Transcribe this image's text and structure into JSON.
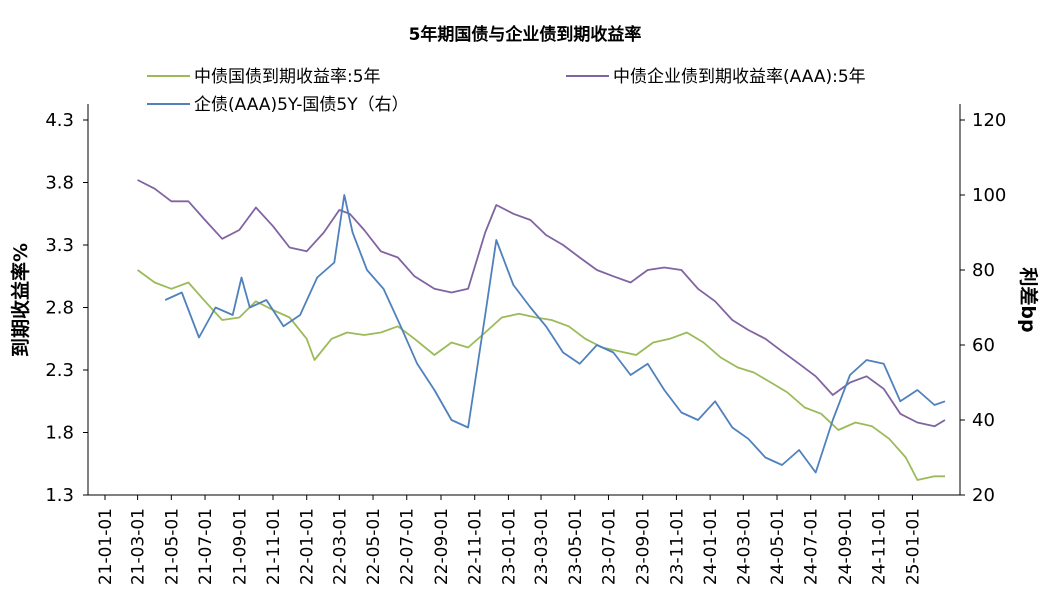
{
  "chart_data": {
    "type": "line",
    "title": "5年期国债与企业债到期收益率",
    "left_axis": {
      "label": "到期收益率%",
      "ylim": [
        1.3,
        4.3
      ],
      "ticks": [
        "4.3",
        "3.8",
        "3.3",
        "2.8",
        "2.3",
        "1.8",
        "1.3"
      ]
    },
    "right_axis": {
      "label": "利差bp",
      "ylim": [
        20,
        120
      ],
      "ticks": [
        "120",
        "100",
        "80",
        "60",
        "40",
        "20"
      ]
    },
    "x_ticks": [
      "21-01-01",
      "21-03-01",
      "21-05-01",
      "21-07-01",
      "21-09-01",
      "21-11-01",
      "22-01-01",
      "22-03-01",
      "22-05-01",
      "22-07-01",
      "22-09-01",
      "22-11-01",
      "23-01-01",
      "23-03-01",
      "23-05-01",
      "23-07-01",
      "23-09-01",
      "23-11-01",
      "24-01-01",
      "24-03-01",
      "24-05-01",
      "24-07-01",
      "24-09-01",
      "24-11-01",
      "25-01-01"
    ],
    "legend_placement": "top",
    "grid": false,
    "series": [
      {
        "name": "中债国债到期收益率:5年",
        "axis": "left",
        "color": "#9BBB59",
        "points": [
          [
            "21-03-01",
            3.1
          ],
          [
            "21-04-01",
            3.0
          ],
          [
            "21-05-01",
            2.95
          ],
          [
            "21-06-01",
            3.0
          ],
          [
            "21-07-01",
            2.85
          ],
          [
            "21-08-01",
            2.7
          ],
          [
            "21-09-01",
            2.72
          ],
          [
            "21-10-01",
            2.85
          ],
          [
            "21-11-01",
            2.78
          ],
          [
            "21-12-01",
            2.72
          ],
          [
            "22-01-01",
            2.55
          ],
          [
            "22-01-15",
            2.38
          ],
          [
            "22-02-15",
            2.55
          ],
          [
            "22-03-15",
            2.6
          ],
          [
            "22-04-15",
            2.58
          ],
          [
            "22-05-15",
            2.6
          ],
          [
            "22-06-15",
            2.65
          ],
          [
            "22-07-15",
            2.55
          ],
          [
            "22-08-20",
            2.42
          ],
          [
            "22-09-20",
            2.52
          ],
          [
            "22-10-20",
            2.48
          ],
          [
            "22-11-20",
            2.6
          ],
          [
            "22-12-20",
            2.72
          ],
          [
            "23-01-20",
            2.75
          ],
          [
            "23-02-20",
            2.72
          ],
          [
            "23-03-20",
            2.7
          ],
          [
            "23-04-20",
            2.65
          ],
          [
            "23-05-20",
            2.55
          ],
          [
            "23-06-20",
            2.48
          ],
          [
            "23-07-20",
            2.45
          ],
          [
            "23-08-20",
            2.42
          ],
          [
            "23-09-20",
            2.52
          ],
          [
            "23-10-20",
            2.55
          ],
          [
            "23-11-20",
            2.6
          ],
          [
            "23-12-20",
            2.52
          ],
          [
            "24-01-20",
            2.4
          ],
          [
            "24-02-20",
            2.32
          ],
          [
            "24-03-20",
            2.28
          ],
          [
            "24-04-20",
            2.2
          ],
          [
            "24-05-20",
            2.12
          ],
          [
            "24-06-20",
            2.0
          ],
          [
            "24-07-20",
            1.95
          ],
          [
            "24-08-20",
            1.82
          ],
          [
            "24-09-20",
            1.88
          ],
          [
            "24-10-20",
            1.85
          ],
          [
            "24-11-20",
            1.75
          ],
          [
            "24-12-20",
            1.6
          ],
          [
            "25-01-10",
            1.42
          ],
          [
            "25-02-10",
            1.45
          ],
          [
            "25-03-01",
            1.45
          ]
        ]
      },
      {
        "name": "中债企业债到期收益率(AAA):5年",
        "axis": "left",
        "color": "#8064A2",
        "points": [
          [
            "21-03-01",
            3.82
          ],
          [
            "21-04-01",
            3.75
          ],
          [
            "21-05-01",
            3.65
          ],
          [
            "21-06-01",
            3.65
          ],
          [
            "21-07-01",
            3.5
          ],
          [
            "21-08-01",
            3.35
          ],
          [
            "21-09-01",
            3.42
          ],
          [
            "21-10-01",
            3.6
          ],
          [
            "21-11-01",
            3.45
          ],
          [
            "21-12-01",
            3.28
          ],
          [
            "22-01-01",
            3.25
          ],
          [
            "22-02-01",
            3.4
          ],
          [
            "22-03-01",
            3.58
          ],
          [
            "22-03-20",
            3.55
          ],
          [
            "22-04-15",
            3.42
          ],
          [
            "22-05-15",
            3.25
          ],
          [
            "22-06-15",
            3.2
          ],
          [
            "22-07-15",
            3.05
          ],
          [
            "22-08-20",
            2.95
          ],
          [
            "22-09-20",
            2.92
          ],
          [
            "22-10-20",
            2.95
          ],
          [
            "22-11-20",
            3.4
          ],
          [
            "22-12-10",
            3.62
          ],
          [
            "23-01-10",
            3.55
          ],
          [
            "23-02-10",
            3.5
          ],
          [
            "23-03-10",
            3.38
          ],
          [
            "23-04-10",
            3.3
          ],
          [
            "23-05-10",
            3.2
          ],
          [
            "23-06-10",
            3.1
          ],
          [
            "23-07-10",
            3.05
          ],
          [
            "23-08-10",
            3.0
          ],
          [
            "23-09-10",
            3.1
          ],
          [
            "23-10-10",
            3.12
          ],
          [
            "23-11-10",
            3.1
          ],
          [
            "23-12-10",
            2.95
          ],
          [
            "24-01-10",
            2.85
          ],
          [
            "24-02-10",
            2.7
          ],
          [
            "24-03-10",
            2.62
          ],
          [
            "24-04-10",
            2.55
          ],
          [
            "24-05-10",
            2.45
          ],
          [
            "24-06-10",
            2.35
          ],
          [
            "24-07-10",
            2.25
          ],
          [
            "24-08-10",
            2.1
          ],
          [
            "24-09-10",
            2.2
          ],
          [
            "24-10-10",
            2.25
          ],
          [
            "24-11-10",
            2.15
          ],
          [
            "24-12-10",
            1.95
          ],
          [
            "25-01-10",
            1.88
          ],
          [
            "25-02-10",
            1.85
          ],
          [
            "25-03-01",
            1.9
          ]
        ]
      },
      {
        "name": "企债(AAA)5Y-国债5Y（右）",
        "axis": "right",
        "color": "#4F81BD",
        "points": [
          [
            "21-04-20",
            72
          ],
          [
            "21-05-20",
            74
          ],
          [
            "21-06-20",
            62
          ],
          [
            "21-07-20",
            70
          ],
          [
            "21-08-20",
            68
          ],
          [
            "21-09-05",
            78
          ],
          [
            "21-09-20",
            70
          ],
          [
            "21-10-20",
            72
          ],
          [
            "21-11-20",
            65
          ],
          [
            "21-12-20",
            68
          ],
          [
            "22-01-20",
            78
          ],
          [
            "22-02-20",
            82
          ],
          [
            "22-03-10",
            100
          ],
          [
            "22-03-25",
            90
          ],
          [
            "22-04-20",
            80
          ],
          [
            "22-05-20",
            75
          ],
          [
            "22-06-20",
            65
          ],
          [
            "22-07-20",
            55
          ],
          [
            "22-08-20",
            48
          ],
          [
            "22-09-20",
            40
          ],
          [
            "22-10-20",
            38
          ],
          [
            "22-11-20",
            68
          ],
          [
            "22-12-10",
            88
          ],
          [
            "23-01-10",
            76
          ],
          [
            "23-02-10",
            70
          ],
          [
            "23-03-10",
            65
          ],
          [
            "23-04-10",
            58
          ],
          [
            "23-05-10",
            55
          ],
          [
            "23-06-10",
            60
          ],
          [
            "23-07-10",
            58
          ],
          [
            "23-08-10",
            52
          ],
          [
            "23-09-10",
            55
          ],
          [
            "23-10-10",
            48
          ],
          [
            "23-11-10",
            42
          ],
          [
            "23-12-10",
            40
          ],
          [
            "24-01-10",
            45
          ],
          [
            "24-02-10",
            38
          ],
          [
            "24-03-10",
            35
          ],
          [
            "24-04-10",
            30
          ],
          [
            "24-05-10",
            28
          ],
          [
            "24-06-10",
            32
          ],
          [
            "24-07-10",
            26
          ],
          [
            "24-08-10",
            40
          ],
          [
            "24-09-10",
            52
          ],
          [
            "24-10-10",
            56
          ],
          [
            "24-11-10",
            55
          ],
          [
            "24-12-10",
            45
          ],
          [
            "25-01-10",
            48
          ],
          [
            "25-02-10",
            44
          ],
          [
            "25-03-01",
            45
          ]
        ]
      }
    ]
  }
}
